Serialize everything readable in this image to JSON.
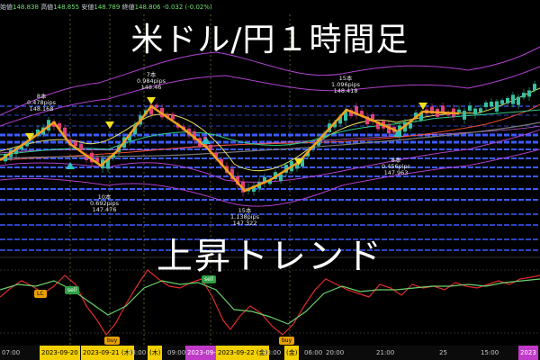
{
  "header": {
    "open_label": "始値",
    "open_value": "148.838",
    "high_label": "高値",
    "high_value": "148.855",
    "low_label": "安値",
    "low_value": "148.789",
    "close_label": "終値",
    "close_value": "148.806",
    "change": "-0.032 (-0.02%)"
  },
  "title": "米ドル/円１時間足",
  "trend_text": "上昇トレンド",
  "annotations": {
    "a1": {
      "bars": "8本",
      "pips": "0.478pips",
      "price": "148.168"
    },
    "a2": {
      "bars": "10本",
      "pips": "0.692pips",
      "price": "147.476"
    },
    "a3": {
      "bars": "7本",
      "pips": "0.984pips",
      "price": "148.46"
    },
    "a4": {
      "bars": "15本",
      "pips": "1.138pips",
      "price": "147.322"
    },
    "a5": {
      "bars": "15本",
      "pips": "1.096pips",
      "price": "148.418"
    },
    "a6": {
      "bars": "8本",
      "pips": "0.456pips",
      "price": "147.963"
    }
  },
  "tags": {
    "lc": "LC",
    "sell1": "sell",
    "sell2": "sell",
    "buy1": "buy",
    "buy2": "buy"
  },
  "time_axis": {
    "t1": "07:00",
    "t2": "2023-09-20",
    "t3": "2023-09-21 (木)",
    "t4": "03:00",
    "t5": "(木)",
    "t6": "09:00",
    "t7": "2023-09-21",
    "t8": "2023-09-22 (金)",
    "t9": "03:00",
    "t10": "(金)",
    "t11": "06:00",
    "t12": "20:00",
    "t13": "21:00",
    "t14": "25",
    "t15": "15:00",
    "t16": "2023"
  },
  "colors": {
    "zigzag": "#f0a020",
    "band": "#b040d0",
    "level": "#3a5cff",
    "up_candle": "#35c0a0",
    "down_candle": "#e0407a",
    "osc_red": "#e02a2a",
    "osc_green": "#6ad06a"
  }
}
